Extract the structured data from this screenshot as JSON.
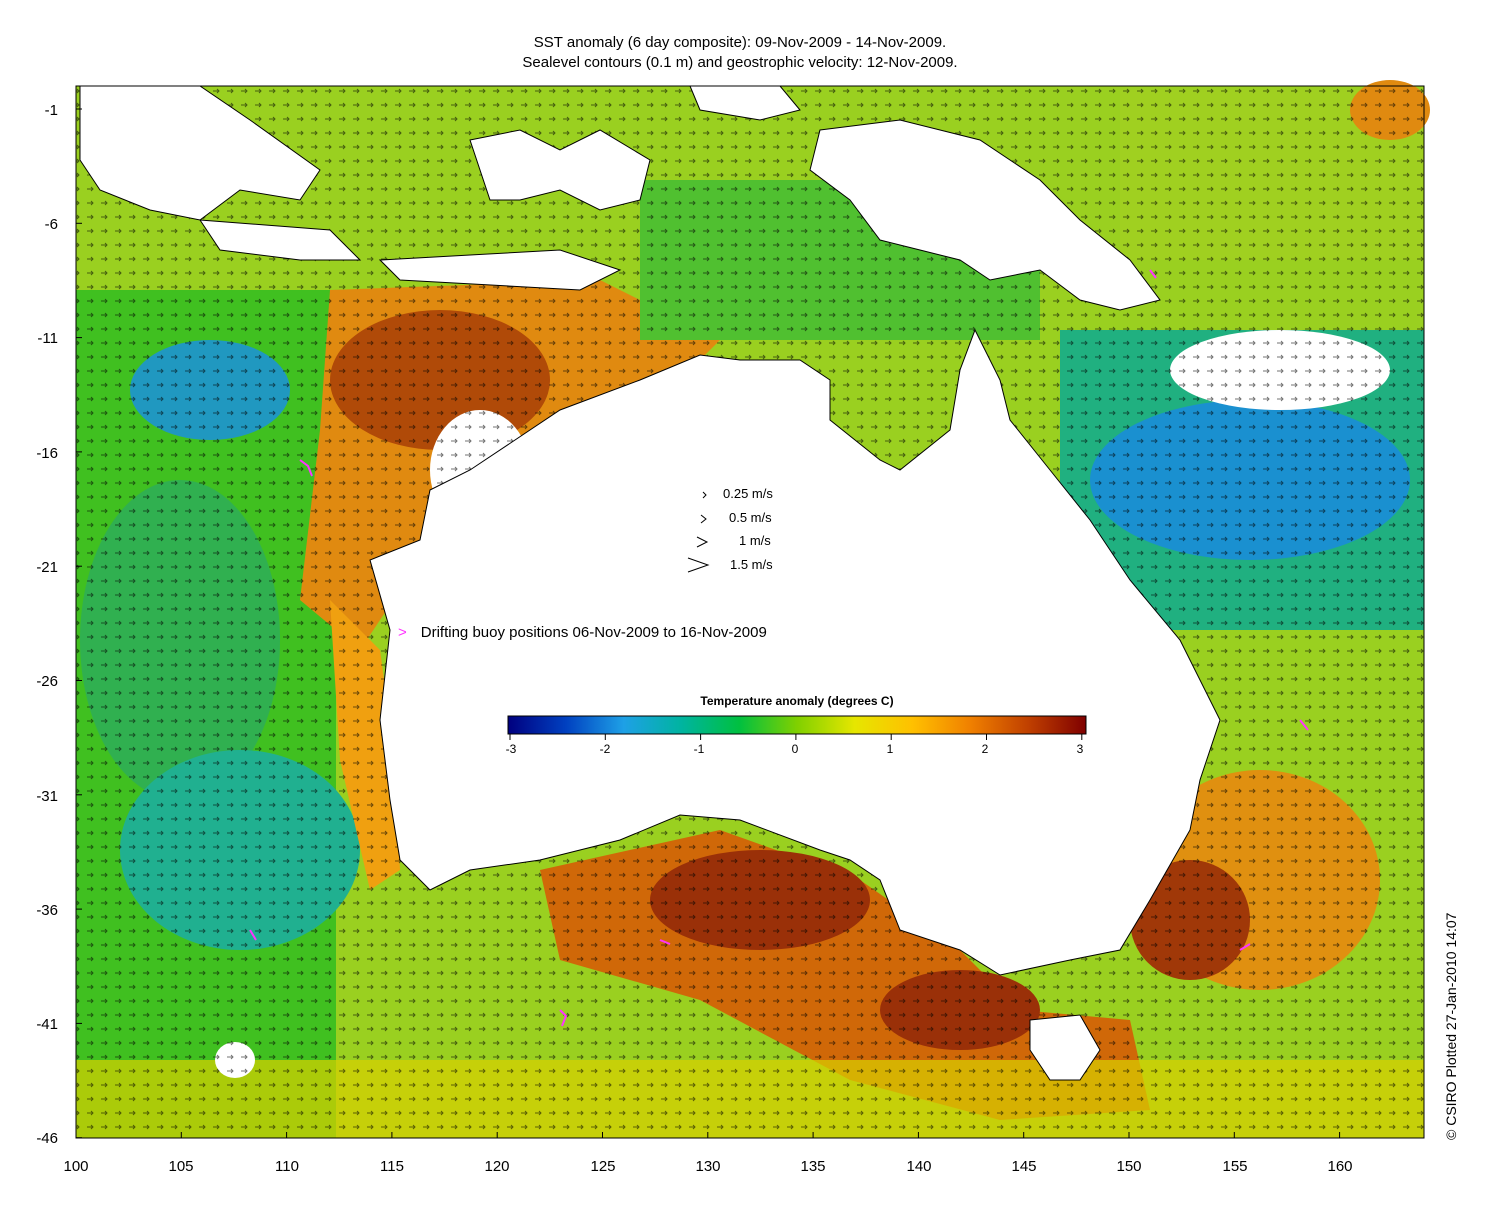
{
  "title_line1": "SST anomaly (6 day composite): 09-Nov-2009 - 14-Nov-2009.",
  "title_line2": "Sealevel contours (0.1 m) and geostrophic velocity: 12-Nov-2009.",
  "y_ticks": [
    "-1",
    "-6",
    "-11",
    "-16",
    "-21",
    "-26",
    "-31",
    "-36",
    "-41",
    "-46"
  ],
  "x_ticks": [
    "100",
    "105",
    "110",
    "115",
    "120",
    "125",
    "130",
    "135",
    "140",
    "145",
    "150",
    "155",
    "160"
  ],
  "velocity_legend": [
    "0.25 m/s",
    "0.5 m/s",
    "1 m/s",
    "1.5 m/s"
  ],
  "buoy_legend": "Drifting buoy positions 06-Nov-2009 to 16-Nov-2009",
  "colorbar": {
    "title": "Temperature anomaly (degrees C)",
    "ticks": [
      "-3",
      "-2",
      "-1",
      "0",
      "1",
      "2",
      "3"
    ],
    "colors": [
      "#00007f",
      "#0040c0",
      "#1ea0e6",
      "#00b4a0",
      "#00c040",
      "#80d000",
      "#e6e600",
      "#ffc000",
      "#f08000",
      "#c04000",
      "#7f0000"
    ]
  },
  "credit": "© CSIRO Plotted 27-Jan-2010 14:07",
  "map_colors": {
    "warm": "#c8600a",
    "hot": "#9a3008",
    "yellow": "#e8c800",
    "green": "#40c020",
    "cool": "#20b0a0",
    "cold": "#1a70d0",
    "land": "#ffffff",
    "buoy": "#ff33ff"
  }
}
